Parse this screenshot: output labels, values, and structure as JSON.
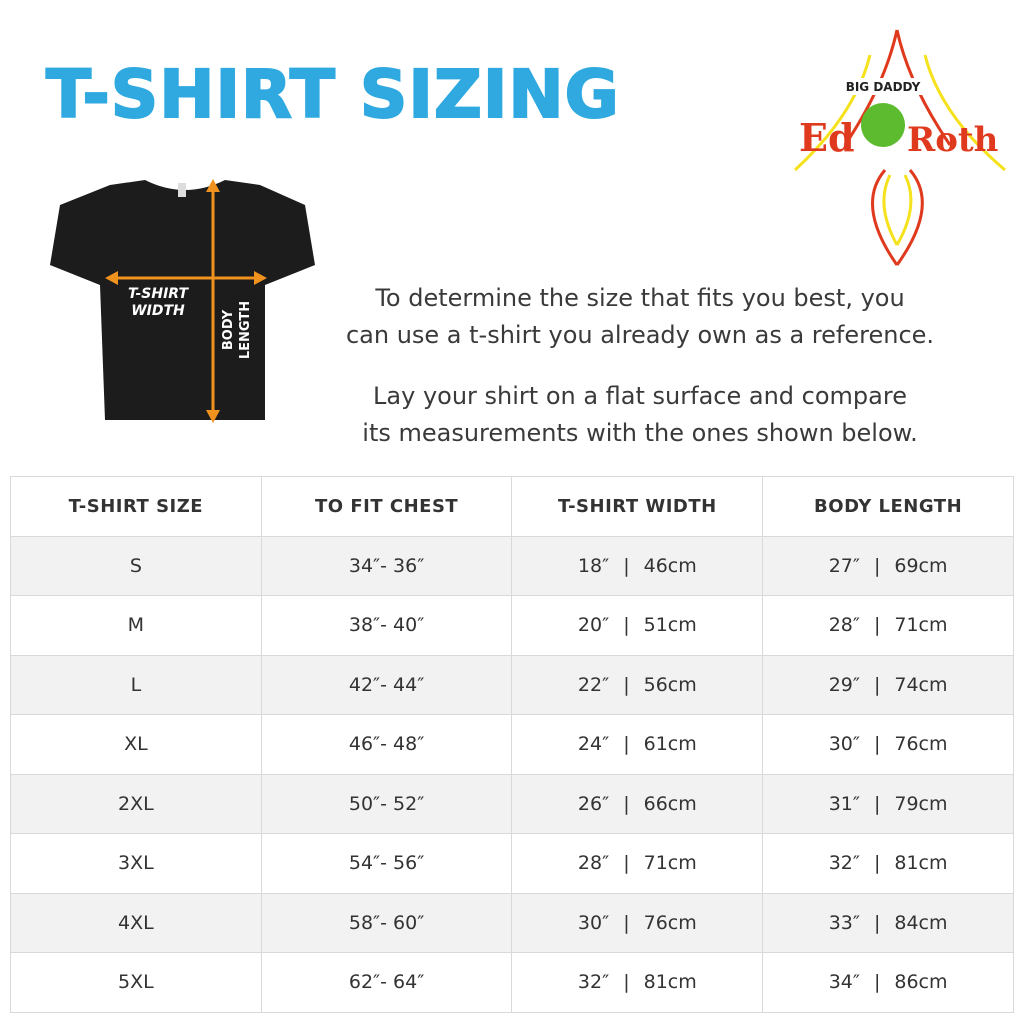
{
  "title": "T-SHIRT SIZING",
  "diagram": {
    "width_label_1": "T-SHIRT",
    "width_label_2": "WIDTH",
    "length_label_1": "BODY",
    "length_label_2": "LENGTH",
    "arrow_color": "#f0921e",
    "shirt_color": "#1c1c1c"
  },
  "logo": {
    "text": "Ed BIG DADDY Roth",
    "colors": [
      "#e03a1e",
      "#f5e11c",
      "#5dbb2f"
    ]
  },
  "intro": {
    "p1_line1": "To determine the size that fits you best, you",
    "p1_line2": "can use a t-shirt you already own as a reference.",
    "p2_line1": "Lay your shirt on a flat surface and compare",
    "p2_line2": "its measurements with the ones shown below."
  },
  "table": {
    "headers": [
      "T-SHIRT SIZE",
      "TO FIT CHEST",
      "T-SHIRT WIDTH",
      "BODY LENGTH"
    ],
    "rows": [
      {
        "size": "S",
        "chest": "34″- 36″",
        "width_in": "18″",
        "width_cm": "46cm",
        "length_in": "27″",
        "length_cm": "69cm"
      },
      {
        "size": "M",
        "chest": "38″- 40″",
        "width_in": "20″",
        "width_cm": "51cm",
        "length_in": "28″",
        "length_cm": "71cm"
      },
      {
        "size": "L",
        "chest": "42″- 44″",
        "width_in": "22″",
        "width_cm": "56cm",
        "length_in": "29″",
        "length_cm": "74cm"
      },
      {
        "size": "XL",
        "chest": "46″- 48″",
        "width_in": "24″",
        "width_cm": "61cm",
        "length_in": "30″",
        "length_cm": "76cm"
      },
      {
        "size": "2XL",
        "chest": "50″- 52″",
        "width_in": "26″",
        "width_cm": "66cm",
        "length_in": "31″",
        "length_cm": "79cm"
      },
      {
        "size": "3XL",
        "chest": "54″- 56″",
        "width_in": "28″",
        "width_cm": "71cm",
        "length_in": "32″",
        "length_cm": "81cm"
      },
      {
        "size": "4XL",
        "chest": "58″- 60″",
        "width_in": "30″",
        "width_cm": "76cm",
        "length_in": "33″",
        "length_cm": "84cm"
      },
      {
        "size": "5XL",
        "chest": "62″- 64″",
        "width_in": "32″",
        "width_cm": "81cm",
        "length_in": "34″",
        "length_cm": "86cm"
      }
    ],
    "separator": "|"
  }
}
